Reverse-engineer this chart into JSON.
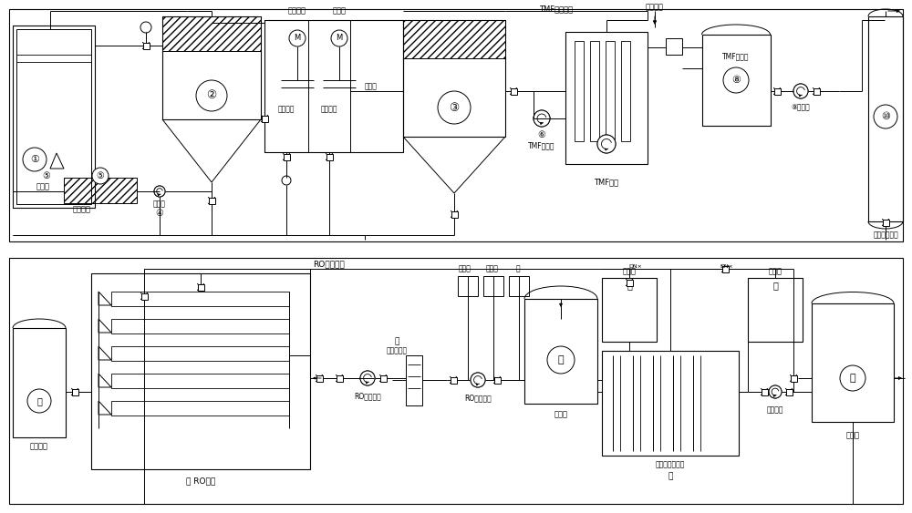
{
  "bg": "#ffffff",
  "lc": "#000000",
  "fw": 10.0,
  "fh": 5.63,
  "top_labels": {
    "naoh": "氢氧化钠",
    "na2co3": "碳酸钠",
    "tmf_return": "TMF浓水回流",
    "compress_air": "压缩空气",
    "tmf_tank": "TMF产水箱",
    "water_pump9": "⑨给水泵",
    "ion_exchange": "离子交换树脂",
    "tmf_lift": "TMF提升泵",
    "tmf_sys": "TMF系统",
    "react1": "反应池一",
    "react2": "反应池二",
    "filter_zone": "过滤区",
    "filter_press_liq": "压滤液",
    "sludge_pump": "污泥泵",
    "sludge_out": "泥饼外运"
  },
  "bot_labels": {
    "ro_return": "RO浓水回流",
    "product_tank21": "产品水箱",
    "ro_device": "RO装置",
    "ro_high_pump": "RO高压泵",
    "ro_lift": "RO提升泵",
    "security_filter": "保安过滤器",
    "scale_inhibitor": "阻垢剂",
    "reductant": "还原剂",
    "acid_label": "酸",
    "product_tank14": "产水箱",
    "alkali_tank": "碱液箱",
    "acid_tank": "酸液箱",
    "edm_sys": "微电解双膜系统",
    "feed_pump12": "给水泵",
    "product_tank11": "产水箱"
  }
}
